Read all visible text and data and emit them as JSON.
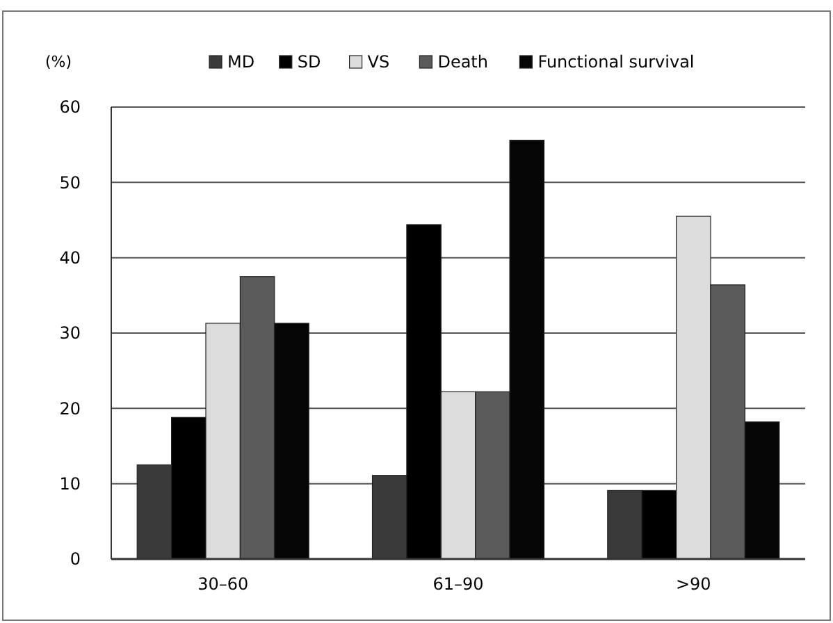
{
  "chart_data": {
    "type": "bar",
    "ylabel": "(%)",
    "categories": [
      "30–60",
      "61–90",
      ">90"
    ],
    "series": [
      {
        "name": "MD",
        "color": "#3a3a3a",
        "values": [
          12.5,
          11.1,
          9.1
        ]
      },
      {
        "name": "SD",
        "color": "#000000",
        "values": [
          18.8,
          44.4,
          9.1
        ]
      },
      {
        "name": "VS",
        "color": "#dcdcdc",
        "values": [
          31.3,
          22.2,
          45.5
        ]
      },
      {
        "name": "Death",
        "color": "#5a5a5a",
        "values": [
          37.5,
          22.2,
          36.4
        ]
      },
      {
        "name": "Functional survival",
        "color": "#050505",
        "values": [
          31.3,
          55.6,
          18.2
        ]
      }
    ],
    "ylim": [
      0,
      60
    ],
    "yticks": [
      0,
      10,
      20,
      30,
      40,
      50,
      60
    ],
    "grid": "y",
    "legend": "top"
  }
}
